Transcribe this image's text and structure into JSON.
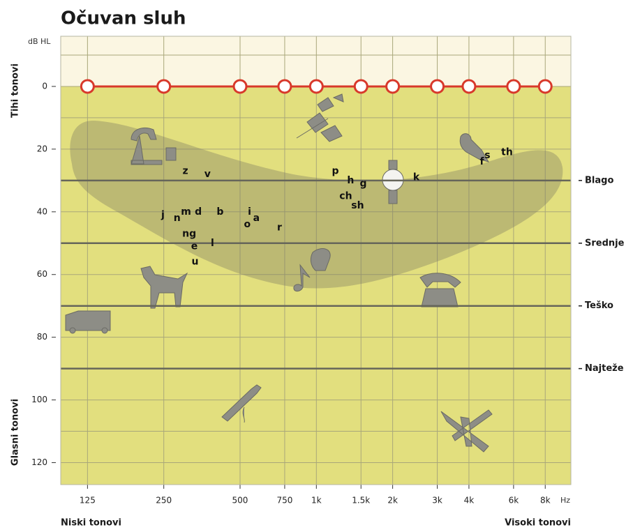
{
  "chart_data": {
    "type": "line",
    "title": "Očuvan sluh",
    "y_unit": "dB HL",
    "x_unit": "Hz",
    "y_label_top": "Tihi tonovi",
    "y_label_bottom": "Glasni tonovi",
    "x_label_left": "Niski tonovi",
    "x_label_right": "Visoki tonovi",
    "x_log": true,
    "y_inverted": true,
    "x": [
      125,
      250,
      500,
      750,
      1000,
      1500,
      2000,
      3000,
      4000,
      6000,
      8000
    ],
    "values": [
      0,
      0,
      0,
      0,
      0,
      0,
      0,
      0,
      0,
      0,
      0
    ],
    "color": "#d8392b",
    "xlim": [
      98,
      10100
    ],
    "ylim": [
      -16,
      127
    ],
    "xticks": [
      125,
      250,
      500,
      750,
      {
        "value": 1000,
        "label": "1k"
      },
      {
        "value": 1500,
        "label": "1.5k"
      },
      {
        "value": 2000,
        "label": "2k"
      },
      {
        "value": 3000,
        "label": "3k"
      },
      {
        "value": 4000,
        "label": "4k"
      },
      {
        "value": 6000,
        "label": "6k"
      },
      {
        "value": 8000,
        "label": "8k"
      }
    ],
    "yticks": [
      0,
      20,
      40,
      60,
      80,
      100,
      120
    ],
    "minor_yticks": [
      -10,
      10,
      30,
      50,
      70,
      90,
      110
    ],
    "grid": true,
    "levels": [
      {
        "value": 30,
        "label": "Blago"
      },
      {
        "value": 50,
        "label": "Srednje"
      },
      {
        "value": 70,
        "label": "Teško"
      },
      {
        "value": 90,
        "label": "Najteže"
      }
    ],
    "phonemes": [
      {
        "label": "z",
        "x": 304,
        "y": 27
      },
      {
        "label": "v",
        "x": 372,
        "y": 28
      },
      {
        "label": "j",
        "x": 248,
        "y": 41
      },
      {
        "label": "n",
        "x": 282,
        "y": 42
      },
      {
        "label": "m",
        "x": 306,
        "y": 40
      },
      {
        "label": "d",
        "x": 342,
        "y": 40
      },
      {
        "label": "b",
        "x": 417,
        "y": 40
      },
      {
        "label": "ng",
        "x": 315,
        "y": 47
      },
      {
        "label": "e",
        "x": 330,
        "y": 51
      },
      {
        "label": "l",
        "x": 389,
        "y": 50
      },
      {
        "label": "u",
        "x": 332,
        "y": 56
      },
      {
        "label": "i",
        "x": 545,
        "y": 40
      },
      {
        "label": "o",
        "x": 534,
        "y": 44
      },
      {
        "label": "a",
        "x": 580,
        "y": 42
      },
      {
        "label": "r",
        "x": 715,
        "y": 45
      },
      {
        "label": "p",
        "x": 1188,
        "y": 27
      },
      {
        "label": "h",
        "x": 1365,
        "y": 30
      },
      {
        "label": "g",
        "x": 1531,
        "y": 31
      },
      {
        "label": "ch",
        "x": 1306,
        "y": 35
      },
      {
        "label": "sh",
        "x": 1455,
        "y": 38
      },
      {
        "label": "k",
        "x": 2479,
        "y": 29
      },
      {
        "label": "s",
        "x": 4731,
        "y": 22
      },
      {
        "label": "f",
        "x": 4500,
        "y": 24
      },
      {
        "label": "th",
        "x": 5654,
        "y": 21
      }
    ]
  }
}
